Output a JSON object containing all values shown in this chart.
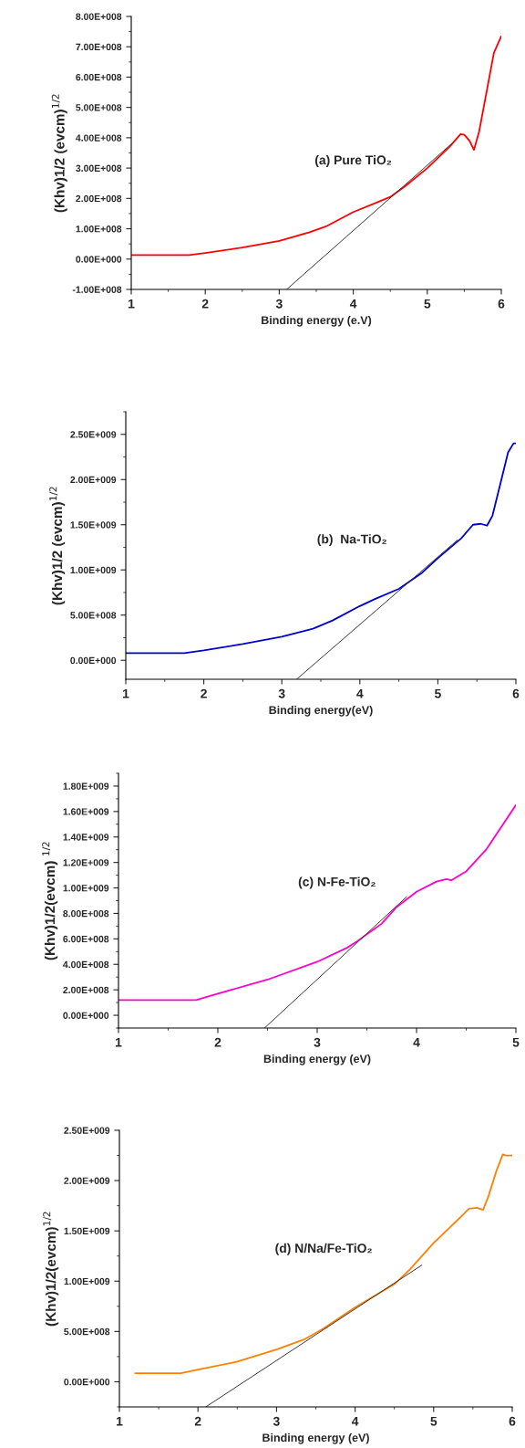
{
  "chart_data": [
    {
      "type": "line",
      "xlabel": "Binding energy (e.V)",
      "ylabel": "(Khv)1/2 (evcm)$^{1/2}$",
      "annotations": [
        "(a) Pure TiO₂"
      ],
      "xlim": [
        1,
        6
      ],
      "xticks": [
        1,
        2,
        3,
        4,
        5,
        6
      ],
      "ylim": [
        -100000000,
        800000000
      ],
      "yticks": [
        {
          "value": -100000000,
          "label": "-1.00E+008"
        },
        {
          "value": 0,
          "label": "0.00E+000"
        },
        {
          "value": 100000000,
          "label": "1.00E+008"
        },
        {
          "value": 200000000,
          "label": "2.00E+008"
        },
        {
          "value": 300000000,
          "label": "3.00E+008"
        },
        {
          "value": 400000000,
          "label": "4.00E+008"
        },
        {
          "value": 500000000,
          "label": "5.00E+008"
        },
        {
          "value": 600000000,
          "label": "6.00E+008"
        },
        {
          "value": 700000000,
          "label": "7.00E+008"
        },
        {
          "value": 800000000,
          "label": "8.00E+008"
        }
      ],
      "grid": false,
      "legend": false,
      "series": [
        {
          "color": "#ff0000",
          "x": [
            1,
            1.78,
            2,
            2.5,
            3,
            3.4,
            3.6,
            3.65,
            4,
            4.3,
            4.5,
            4.7,
            5,
            5.3,
            5.45,
            5.5,
            5.57,
            5.63,
            5.7,
            5.8,
            5.9,
            6
          ],
          "values": [
            13000000,
            13000000,
            20000000,
            38000000,
            60000000,
            88000000,
            105000000,
            110000000,
            155000000,
            185000000,
            205000000,
            240000000,
            300000000,
            370000000,
            412000000,
            410000000,
            390000000,
            360000000,
            420000000,
            550000000,
            680000000,
            735000000
          ]
        },
        {
          "type": "line",
          "color": "#333333",
          "x": [
            3.1,
            5.35
          ],
          "values": [
            -100000000,
            385000000
          ]
        }
      ]
    },
    {
      "type": "line",
      "xlabel": "Binding energy(eV)",
      "ylabel": "(Khv)1/2 (evcm)$^{1/2}$",
      "annotations": [
        "(b)  Na-TiO₂"
      ],
      "xlim": [
        1,
        6
      ],
      "xticks": [
        1,
        2,
        3,
        4,
        5,
        6
      ],
      "ylim": [
        -210000000,
        2750000000
      ],
      "yticks": [
        {
          "value": 0,
          "label": "0.00E+000"
        },
        {
          "value": 500000000,
          "label": "5.00E+008"
        },
        {
          "value": 1000000000,
          "label": "1.00E+009"
        },
        {
          "value": 1500000000,
          "label": "1.50E+009"
        },
        {
          "value": 2000000000,
          "label": "2.00E+009"
        },
        {
          "value": 2500000000,
          "label": "2.50E+009"
        }
      ],
      "grid": false,
      "legend": false,
      "series": [
        {
          "color": "#0000cc",
          "x": [
            1,
            1.75,
            2,
            2.5,
            3,
            3.4,
            3.65,
            4,
            4.2,
            4.5,
            4.8,
            5,
            5.3,
            5.45,
            5.55,
            5.63,
            5.7,
            5.8,
            5.9,
            5.97,
            6
          ],
          "values": [
            80000000,
            80000000,
            110000000,
            180000000,
            260000000,
            350000000,
            440000000,
            600000000,
            680000000,
            790000000,
            970000000,
            1130000000,
            1350000000,
            1500000000,
            1510000000,
            1490000000,
            1600000000,
            1950000000,
            2300000000,
            2400000000,
            2400000000
          ]
        },
        {
          "type": "line",
          "color": "#333333",
          "x": [
            3.19,
            5.25
          ],
          "values": [
            -210000000,
            1330000000
          ]
        }
      ]
    },
    {
      "type": "line",
      "xlabel": "Binding energy (eV)",
      "ylabel": "(Khv)1/2(evcm) $^{1/2}$",
      "annotations": [
        "(c) N-Fe-TiO₂"
      ],
      "xlim": [
        1,
        5
      ],
      "xticks": [
        1,
        2,
        3,
        4,
        5
      ],
      "ylim": [
        -100000000,
        1900000000
      ],
      "yticks": [
        {
          "value": 0,
          "label": "0.00E+000"
        },
        {
          "value": 200000000,
          "label": "2.00E+008"
        },
        {
          "value": 400000000,
          "label": "4.00E+008"
        },
        {
          "value": 600000000,
          "label": "6.00E+008"
        },
        {
          "value": 800000000,
          "label": "8.00E+008"
        },
        {
          "value": 1000000000,
          "label": "1.00E+009"
        },
        {
          "value": 1200000000,
          "label": "1.20E+009"
        },
        {
          "value": 1400000000,
          "label": "1.40E+009"
        },
        {
          "value": 1600000000,
          "label": "1.60E+009"
        },
        {
          "value": 1800000000,
          "label": "1.80E+009"
        }
      ],
      "grid": false,
      "legend": false,
      "series": [
        {
          "color": "#ff00cc",
          "x": [
            1,
            1.78,
            2,
            2.5,
            3,
            3.3,
            3.4,
            3.65,
            3.8,
            4,
            4.2,
            4.3,
            4.35,
            4.5,
            4.7,
            5
          ],
          "values": [
            120000000,
            120000000,
            170000000,
            280000000,
            420000000,
            530000000,
            580000000,
            720000000,
            850000000,
            970000000,
            1050000000,
            1070000000,
            1060000000,
            1130000000,
            1300000000,
            1650000000
          ]
        },
        {
          "type": "line",
          "color": "#333333",
          "x": [
            2.47,
            3.9
          ],
          "values": [
            -100000000,
            930000000
          ]
        }
      ]
    },
    {
      "type": "line",
      "xlabel": "Binding energy (eV)",
      "ylabel": "(Khv)1/2(evcm)$^{1/2}$",
      "annotations": [
        "(d) N/Na/Fe-TiO₂"
      ],
      "xlim": [
        1,
        6
      ],
      "xticks": [
        1,
        2,
        3,
        4,
        5,
        6
      ],
      "ylim": [
        -250000000,
        2500000000
      ],
      "yticks": [
        {
          "value": 0,
          "label": "0.00E+000"
        },
        {
          "value": 500000000,
          "label": "5.00E+008"
        },
        {
          "value": 1000000000,
          "label": "1.00E+009"
        },
        {
          "value": 1500000000,
          "label": "1.50E+009"
        },
        {
          "value": 2000000000,
          "label": "2.00E+009"
        },
        {
          "value": 2500000000,
          "label": "2.50E+009"
        }
      ],
      "grid": false,
      "legend": false,
      "series": [
        {
          "color": "#ff8000",
          "x": [
            1.2,
            1.78,
            2,
            2.5,
            3,
            3.35,
            3.6,
            4,
            4.5,
            4.7,
            5,
            5.2,
            5.45,
            5.55,
            5.63,
            5.7,
            5.8,
            5.88,
            5.92,
            6
          ],
          "values": [
            85000000,
            85000000,
            120000000,
            200000000,
            320000000,
            420000000,
            530000000,
            740000000,
            970000000,
            1120000000,
            1380000000,
            1530000000,
            1720000000,
            1730000000,
            1710000000,
            1850000000,
            2100000000,
            2260000000,
            2250000000,
            2250000000
          ]
        },
        {
          "type": "line",
          "color": "#333333",
          "x": [
            2.1,
            4.85
          ],
          "values": [
            -250000000,
            1160000000
          ]
        }
      ]
    }
  ]
}
